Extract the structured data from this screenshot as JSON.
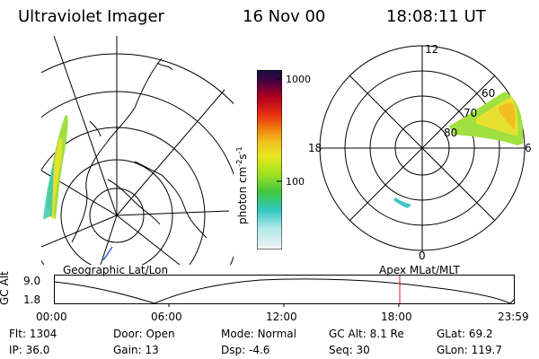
{
  "header": {
    "instrument": "Ultraviolet Imager",
    "date": "16 Nov 00",
    "time": "18:08:11 UT"
  },
  "colorbar": {
    "unit_label": "photon cm",
    "unit_sup1": "-2",
    "unit_mid": "s",
    "unit_sup2": "-1",
    "ticks": [
      "1000",
      "100"
    ]
  },
  "polar_plot": {
    "mlt_labels": {
      "top": "12",
      "left": "18",
      "bottom": "0",
      "right": "6"
    },
    "lat_labels": [
      "60",
      "70",
      "80"
    ]
  },
  "map_label": "Geographic Lat/Lon",
  "polar_label": "Apex MLat/MLT",
  "altitude_panel": {
    "axis_label": "GC Alt",
    "y_ticks": [
      "9.0",
      "1.8"
    ],
    "x_ticks": [
      "00:00",
      "06:00",
      "12:00",
      "18:00",
      "23:59"
    ],
    "marker_color": "#cc2222"
  },
  "status": {
    "flt_label": "Flt:",
    "flt_value": "1304",
    "ip_label": "IP:",
    "ip_value": "36.0",
    "door_label": "Door:",
    "door_value": "Open",
    "gain_label": "Gain:",
    "gain_value": "13",
    "mode_label": "Mode:",
    "mode_value": "Normal",
    "dsp_label": "Dsp:",
    "dsp_value": "-4.6",
    "gcalt_label": "GC Alt:",
    "gcalt_value": "8.1 Re",
    "seq_label": "Seq:",
    "seq_value": "30",
    "glat_label": "GLat:",
    "glat_value": "69.2",
    "glon_label": "GLon:",
    "glon_value": "119.7"
  }
}
